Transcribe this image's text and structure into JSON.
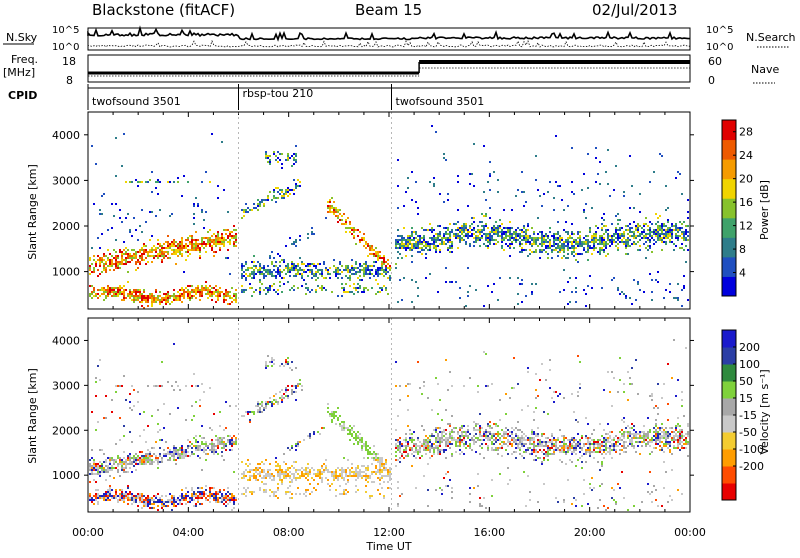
{
  "header": {
    "title": "Blackstone (fitACF)",
    "beam": "Beam 15",
    "date": "02/Jul/2013"
  },
  "top_panels": {
    "nsky_label": "N.Sky",
    "nsky_ticks": [
      "10^5",
      "10^0"
    ],
    "nsearch_label": "N.Search",
    "nsearch_ticks": [
      "10^5",
      "10^0"
    ],
    "freq_label": "Freq.",
    "freq_unit": "[MHz]",
    "freq_ticks": [
      "18",
      "8"
    ],
    "nave_label": "Nave",
    "nave_ticks": [
      "60",
      "0"
    ],
    "cpid_label": "CPID",
    "cpid_segments": [
      {
        "label": "twofsound 3501",
        "start": 0,
        "end": 6
      },
      {
        "label": "rbsp-tou 210",
        "start": 6,
        "end": 12.1
      },
      {
        "label": "twofsound 3501",
        "start": 12.1,
        "end": 24
      }
    ]
  },
  "colors": {
    "power": [
      "#0000dd",
      "#1f4fc0",
      "#2e7d8a",
      "#3fa26a",
      "#87c22c",
      "#f0d400",
      "#f59b00",
      "#ee5a00",
      "#e00000"
    ],
    "velocity": [
      "#e80000",
      "#ff4c00",
      "#ff9d00",
      "#f3cc31",
      "#c9c9c9",
      "#a8a8a8",
      "#7fd13b",
      "#2f8a3e",
      "#2b3ea5",
      "#1a1acc"
    ]
  },
  "chart_data": [
    {
      "type": "heatmap",
      "name": "power",
      "ylabel": "Slant Range [km]",
      "ylim": [
        180,
        4500
      ],
      "yticks": [
        1000,
        2000,
        3000,
        4000
      ],
      "xlim": [
        0,
        24
      ],
      "xticks": [
        "00:00",
        "04:00",
        "08:00",
        "12:00",
        "16:00",
        "20:00",
        "00:00"
      ],
      "colorbar_label": "Power [dB]",
      "colorbar_ticks": [
        "4",
        "8",
        "12",
        "16",
        "20",
        "24",
        "28"
      ],
      "colorbar_range": [
        0,
        30
      ]
    },
    {
      "type": "heatmap",
      "name": "velocity",
      "ylabel": "Slant Range [km]",
      "ylim": [
        180,
        4500
      ],
      "yticks": [
        1000,
        2000,
        3000,
        4000
      ],
      "xlim": [
        0,
        24
      ],
      "xticks": [
        "00:00",
        "04:00",
        "08:00",
        "12:00",
        "16:00",
        "20:00",
        "00:00"
      ],
      "xlabel": "Time UT",
      "colorbar_label": "Velocity [m s⁻¹]",
      "colorbar_ticks": [
        "200",
        "100",
        "50",
        "15",
        "-15",
        "-50",
        "-100",
        "-200"
      ],
      "colorbar_range": [
        -250,
        250
      ]
    }
  ]
}
